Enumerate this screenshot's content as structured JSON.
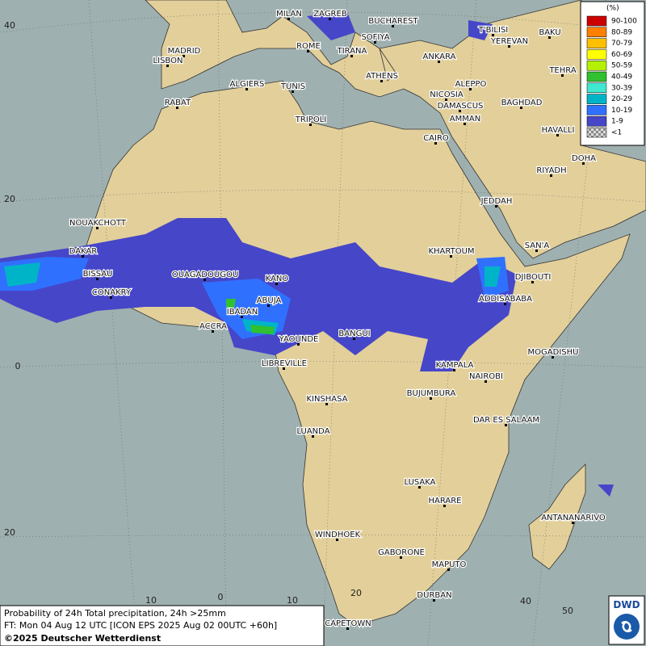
{
  "map": {
    "cities": [
      "MILAN",
      "ZAGREB",
      "BUCHAREST",
      "T'BILISI",
      "BAKU",
      "ROME",
      "SOFIYA",
      "YEREVAN",
      "MADRID",
      "LISBON",
      "TIRANA",
      "ANKARA",
      "TEHRA",
      "ATHENS",
      "ALGIERS",
      "TUNIS",
      "ALEPPO",
      "RABAT",
      "NICOSIA",
      "BAGHDAD",
      "TRIPOLI",
      "DAMASCUS",
      "AMMAN",
      "HAVALLI",
      "CAIRO",
      "DOHA",
      "RIYADH",
      "JEDDAH",
      "NOUAKCHOTT",
      "SAN'A",
      "DAKAR",
      "KHARTOUM",
      "BISSAU",
      "OUAGADOUGOU",
      "KANO",
      "DJIBOUTI",
      "CONAKRY",
      "ABUJA",
      "ADDISABABA",
      "IBADAN",
      "ACCRA",
      "YAOUNDE",
      "BANGUI",
      "MOGADISHU",
      "LIBREVILLE",
      "KAMPALA",
      "NAIROBI",
      "KINSHASA",
      "BUJUMBURA",
      "DAR ES SALAAM",
      "LUANDA",
      "LUSAKA",
      "HARARE",
      "ANTANANARIVO",
      "WINDHOEK",
      "GABORONE",
      "MAPUTO",
      "DURBAN",
      "CAPETOWN"
    ],
    "lat_labels": [
      "40",
      "20",
      "0",
      "20"
    ],
    "lon_labels": [
      "10",
      "0",
      "10",
      "20",
      "40",
      "50"
    ],
    "legend": {
      "title": "(%)",
      "items": [
        {
          "label": "90-100",
          "color": "#cc0000"
        },
        {
          "label": "80-89",
          "color": "#ff7f00"
        },
        {
          "label": "70-79",
          "color": "#ffc000"
        },
        {
          "label": "60-69",
          "color": "#ffff00"
        },
        {
          "label": "50-59",
          "color": "#b4f000"
        },
        {
          "label": "40-49",
          "color": "#30c030"
        },
        {
          "label": "30-39",
          "color": "#40e8d0"
        },
        {
          "label": "20-29",
          "color": "#00b4c8"
        },
        {
          "label": "10-19",
          "color": "#3070ff"
        },
        {
          "label": "1-9",
          "color": "#4646c8"
        },
        {
          "label": "<1",
          "color": "#b0b0b0"
        }
      ]
    },
    "footer": {
      "line1": "Probability of 24h Total precipitation, 24h >25mm",
      "line2": "FT: Mon 04 Aug 12 UTC [ICON EPS 2025 Aug 02 00UTC +60h]",
      "line3": "©2025 Deutscher Wetterdienst"
    },
    "logo": "DWD"
  }
}
